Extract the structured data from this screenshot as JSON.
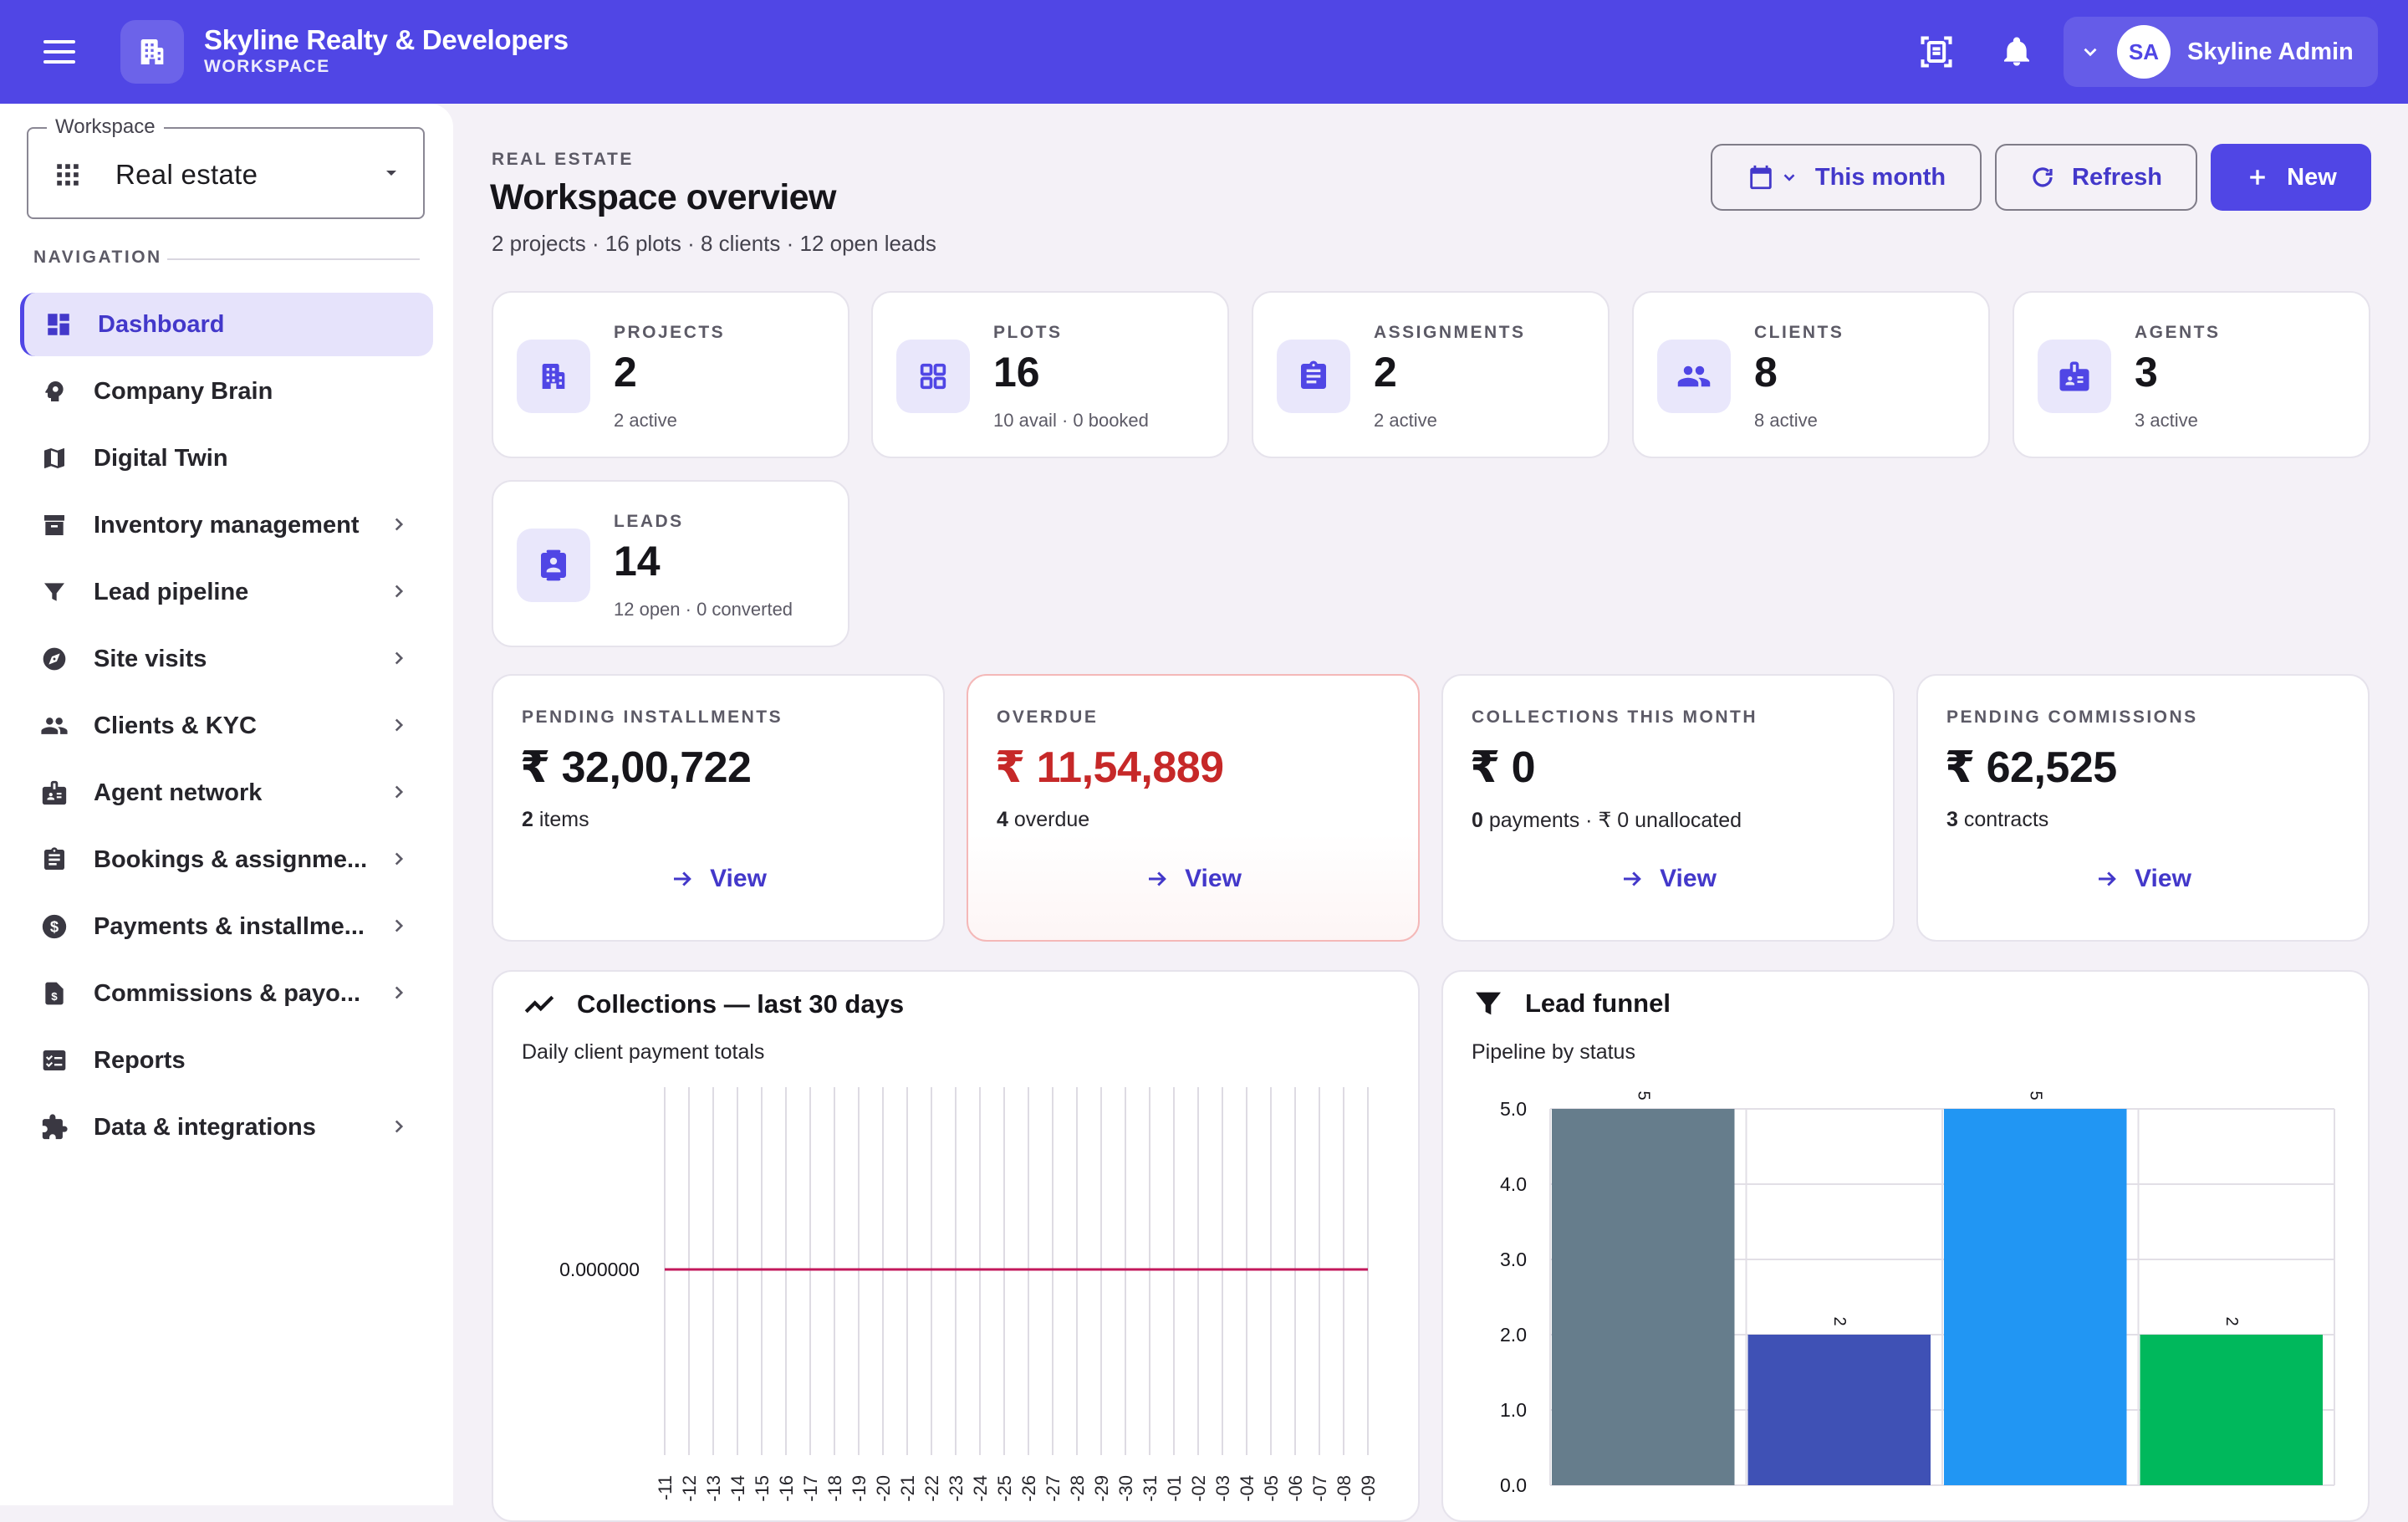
{
  "app": {
    "title": "Skyline Realty & Developers",
    "subtitle": "WORKSPACE",
    "user_initials": "SA",
    "user_name": "Skyline Admin"
  },
  "icons": {
    "menu": "menu-icon",
    "brand": "building-icon",
    "scan": "document-scanner-icon",
    "notifications": "bell-icon",
    "user_menu": "chevron-down-icon"
  },
  "sidebar": {
    "workspace_label": "Workspace",
    "workspace_value": "Real estate",
    "nav_heading": "NAVIGATION",
    "items": [
      {
        "label": "Dashboard",
        "icon": "dashboard-icon",
        "active": true,
        "has_children": false
      },
      {
        "label": "Company Brain",
        "icon": "brain-icon",
        "active": false,
        "has_children": false
      },
      {
        "label": "Digital Twin",
        "icon": "map-icon",
        "active": false,
        "has_children": false
      },
      {
        "label": "Inventory management",
        "icon": "archive-icon",
        "active": false,
        "has_children": true
      },
      {
        "label": "Lead pipeline",
        "icon": "filter-icon",
        "active": false,
        "has_children": true
      },
      {
        "label": "Site visits",
        "icon": "compass-icon",
        "active": false,
        "has_children": true
      },
      {
        "label": "Clients & KYC",
        "icon": "people-icon",
        "active": false,
        "has_children": true
      },
      {
        "label": "Agent network",
        "icon": "badge-icon",
        "active": false,
        "has_children": true
      },
      {
        "label": "Bookings & assignme...",
        "icon": "clipboard-icon",
        "active": false,
        "has_children": true
      },
      {
        "label": "Payments & installme...",
        "icon": "dollar-icon",
        "active": false,
        "has_children": true
      },
      {
        "label": "Commissions & payo...",
        "icon": "invoice-icon",
        "active": false,
        "has_children": true
      },
      {
        "label": "Reports",
        "icon": "report-icon",
        "active": false,
        "has_children": false
      },
      {
        "label": "Data & integrations",
        "icon": "puzzle-icon",
        "active": false,
        "has_children": true
      }
    ]
  },
  "header": {
    "eyebrow": "REAL ESTATE",
    "title": "Workspace overview",
    "subtitle": "2 projects · 16 plots · 8 clients · 12 open leads",
    "period_label": "This month",
    "refresh_label": "Refresh",
    "new_label": "New"
  },
  "stats": [
    {
      "label": "PROJECTS",
      "value": "2",
      "note": "2 active",
      "icon": "building-icon"
    },
    {
      "label": "PLOTS",
      "value": "16",
      "note": "10 avail · 0 booked",
      "icon": "grid-icon"
    },
    {
      "label": "ASSIGNMENTS",
      "value": "2",
      "note": "2 active",
      "icon": "clipboard-icon"
    },
    {
      "label": "CLIENTS",
      "value": "8",
      "note": "8 active",
      "icon": "people-icon"
    },
    {
      "label": "AGENTS",
      "value": "3",
      "note": "3 active",
      "icon": "badge-icon"
    },
    {
      "label": "LEADS",
      "value": "14",
      "note": "12 open · 0 converted",
      "icon": "contact-icon"
    }
  ],
  "finance": [
    {
      "label": "PENDING INSTALLMENTS",
      "value": "₹ 32,00,722",
      "count": "2",
      "note": " items",
      "link": "View",
      "danger": false
    },
    {
      "label": "OVERDUE",
      "value": "₹ 11,54,889",
      "count": "4",
      "note": " overdue",
      "link": "View",
      "danger": true
    },
    {
      "label": "COLLECTIONS THIS MONTH",
      "value": "₹ 0",
      "count": "0",
      "note": " payments · ₹ 0 unallocated",
      "link": "View",
      "danger": false
    },
    {
      "label": "PENDING COMMISSIONS",
      "value": "₹ 62,525",
      "count": "3",
      "note": " contracts",
      "link": "View",
      "danger": false
    }
  ],
  "collections_chart": {
    "title": "Collections — last 30 days",
    "subtitle": "Daily client payment totals",
    "icon": "trending-line-icon",
    "color": "#c2185b",
    "chart_data": {
      "type": "line",
      "x": [
        "-11",
        "-12",
        "-13",
        "-14",
        "-15",
        "-16",
        "-17",
        "-18",
        "-19",
        "-20",
        "-21",
        "-22",
        "-23",
        "-24",
        "-25",
        "-26",
        "-27",
        "-28",
        "-29",
        "-30",
        "-31",
        "-01",
        "-02",
        "-03",
        "-04",
        "-05",
        "-06",
        "-07",
        "-08",
        "-09"
      ],
      "values": [
        0,
        0,
        0,
        0,
        0,
        0,
        0,
        0,
        0,
        0,
        0,
        0,
        0,
        0,
        0,
        0,
        0,
        0,
        0,
        0,
        0,
        0,
        0,
        0,
        0,
        0,
        0,
        0,
        0,
        0
      ],
      "y_tick_labels": [
        "0.000000"
      ],
      "grid": "vertical"
    }
  },
  "funnel_chart": {
    "title": "Lead funnel",
    "subtitle": "Pipeline by status",
    "icon": "filter-icon",
    "chart_data": {
      "type": "bar",
      "values": [
        5,
        2,
        5,
        2
      ],
      "colors": [
        "#667d8c",
        "#3f51b5",
        "#2196f3",
        "#00b85c"
      ],
      "y_ticks": [
        "0.0",
        "1.0",
        "2.0",
        "3.0",
        "4.0",
        "5.0"
      ],
      "ylim": [
        0,
        5
      ],
      "grid": true
    }
  }
}
